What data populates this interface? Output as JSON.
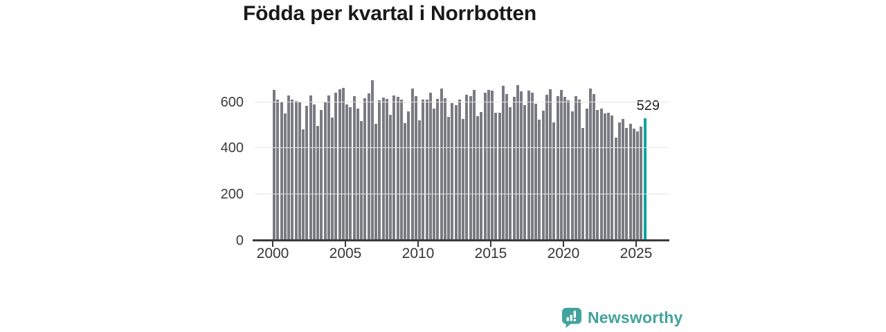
{
  "title": "Födda per kvartal i Norrbotten",
  "chart_data": {
    "type": "bar",
    "title": "Födda per kvartal i Norrbotten",
    "unit": "births per quarter",
    "period_start": "2000 Q1",
    "period_end": "2025 Q3",
    "values": [
      652,
      612,
      598,
      552,
      630,
      610,
      605,
      598,
      482,
      585,
      628,
      590,
      498,
      565,
      598,
      628,
      532,
      642,
      655,
      662,
      590,
      578,
      625,
      572,
      518,
      618,
      638,
      693,
      506,
      608,
      620,
      614,
      545,
      628,
      622,
      612,
      508,
      560,
      658,
      625,
      522,
      610,
      612,
      640,
      572,
      615,
      658,
      618,
      535,
      595,
      588,
      612,
      528,
      632,
      625,
      652,
      538,
      558,
      640,
      652,
      650,
      553,
      555,
      670,
      635,
      578,
      622,
      674,
      648,
      588,
      650,
      642,
      592,
      525,
      562,
      632,
      657,
      512,
      627,
      654,
      622,
      608,
      560,
      625,
      612,
      488,
      572,
      658,
      635,
      565,
      572,
      550,
      555,
      542,
      445,
      512,
      528,
      488,
      505,
      485,
      473,
      495,
      529
    ],
    "highlight": {
      "index": 102,
      "value": 529,
      "label": "529",
      "color": "#00a49e"
    },
    "bar_color": "#7a7a82",
    "xtick_labels": [
      "2000",
      "2005",
      "2010",
      "2015",
      "2020",
      "2025"
    ],
    "ytick_values": [
      0,
      200,
      400,
      600
    ],
    "ylim": [
      0,
      700
    ],
    "grid": true,
    "legend": "none"
  },
  "colors": {
    "grid": "#e4e4e4",
    "axis": "#3a3a3a",
    "brand_teal": "#42a39c"
  },
  "branding": {
    "name": "Newsworthy"
  }
}
